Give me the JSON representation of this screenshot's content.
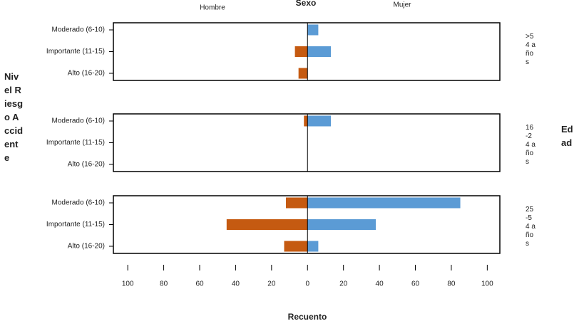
{
  "chart_data": {
    "type": "bar",
    "orientation": "horizontal",
    "title": "Sexo",
    "xlabel": "Recuento",
    "ylabel": "Nivel Riesgo Accidente",
    "panel_title": "Edad",
    "categories": [
      "Moderado (6-10)",
      "Importante (11-15)",
      "Alto (16-20)"
    ],
    "series": [
      {
        "name": "Hombre",
        "color": "#c55a11"
      },
      {
        "name": "Mujer",
        "color": "#5b9bd5"
      }
    ],
    "panels": [
      {
        "label": ">54 años",
        "values": [
          [
            null,
            -7,
            -5
          ],
          [
            6,
            13,
            null
          ]
        ]
      },
      {
        "label": "16-24 años",
        "values": [
          [
            -2,
            null,
            null
          ],
          [
            13,
            null,
            null
          ]
        ]
      },
      {
        "label": "25-54 años",
        "values": [
          [
            -12,
            -45,
            -13
          ],
          [
            85,
            38,
            6
          ]
        ]
      }
    ],
    "xlim": [
      -108,
      107
    ],
    "xticks": [
      {
        "value": -100,
        "label": "100"
      },
      {
        "value": -80,
        "label": "80"
      },
      {
        "value": -60,
        "label": "60"
      },
      {
        "value": -40,
        "label": "40"
      },
      {
        "value": -20,
        "label": "20"
      },
      0,
      20,
      40,
      60,
      80,
      100
    ]
  }
}
